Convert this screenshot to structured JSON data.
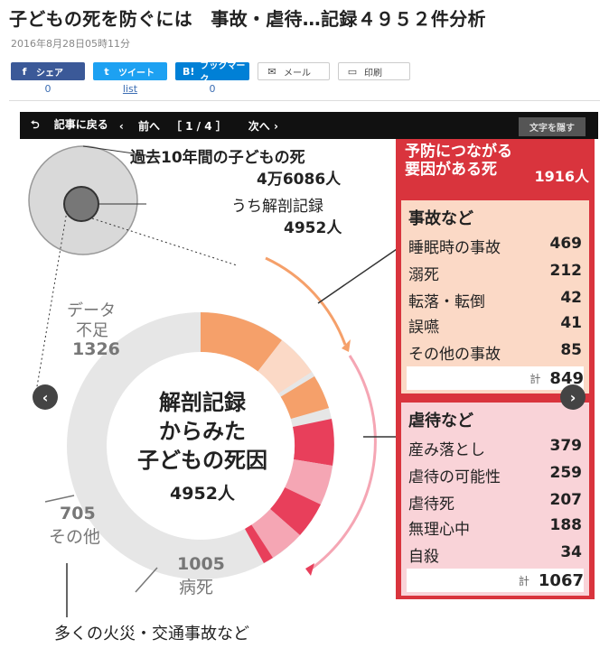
{
  "header": {
    "title": "子どもの死を防ぐには　事故・虐待…記録４９５２件分析",
    "date": "2016年8月28日05時11分"
  },
  "share": {
    "facebook_label": "シェア",
    "facebook_count": "0",
    "twitter_label": "ツイート",
    "twitter_count": "list",
    "hatena_label": "ブックマーク",
    "hatena_count": "0",
    "mail_label": "メール",
    "print_label": "印刷"
  },
  "colors": {
    "facebook": "#3b5998",
    "twitter": "#1da1f2",
    "hatena": "#0080d6",
    "accent_red": "#d9343d",
    "orange": "#f5a06a",
    "pink": "#e83f5b"
  },
  "nav": {
    "back_label": "記事に戻る",
    "prev_label": "前へ",
    "page_indicator": "［ 1 / 4 ］",
    "next_label": "次へ",
    "hide_text_label": "文字を隠す"
  },
  "infographic": {
    "past_title": "過去10年間の子どもの死",
    "past_count": "4万6086人",
    "autopsy_label": "うち解剖記録",
    "autopsy_count": "4952人",
    "center_line1": "解剖記録",
    "center_line2": "からみた",
    "center_line3": "子どもの死因",
    "center_count": "4952人",
    "data_short_label1": "データ",
    "data_short_label2": "不足",
    "data_short_value": "1326",
    "other_value": "705",
    "other_label": "その他",
    "disease_value": "1005",
    "disease_label": "病死",
    "footnote": "多くの火災・交通事故など",
    "panel": {
      "head_line1": "予防につながる",
      "head_line2": "要因がある死",
      "head_total": "1916人",
      "accident": {
        "title": "事故など",
        "items": [
          {
            "label": "睡眠時の事故",
            "value": "469"
          },
          {
            "label": "溺死",
            "value": "212"
          },
          {
            "label": "転落・転倒",
            "value": "42"
          },
          {
            "label": "誤嚥",
            "value": "41"
          },
          {
            "label": "その他の事故",
            "value": "85"
          }
        ],
        "total_label": "計",
        "total_value": "849"
      },
      "abuse": {
        "title": "虐待など",
        "items": [
          {
            "label": "産み落とし",
            "value": "379"
          },
          {
            "label": "虐待の可能性",
            "value": "259"
          },
          {
            "label": "虐待死",
            "value": "207"
          },
          {
            "label": "無理心中",
            "value": "188"
          },
          {
            "label": "自殺",
            "value": "34"
          }
        ],
        "total_label": "計",
        "total_value": "1067"
      }
    }
  }
}
